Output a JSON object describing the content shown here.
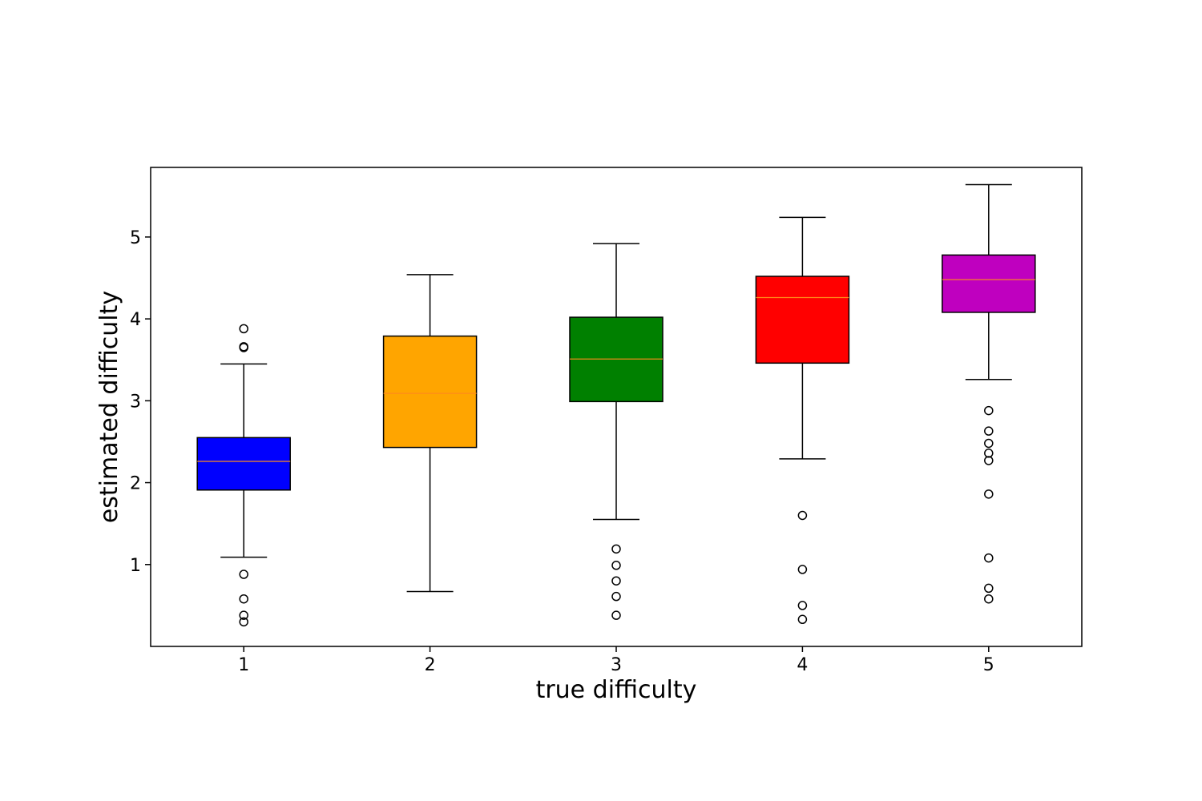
{
  "chart_data": {
    "type": "box",
    "xlabel": "true difficulty",
    "ylabel": "estimated difficulty",
    "ylim": [
      0.0,
      5.85
    ],
    "xlim": [
      0.5,
      5.5
    ],
    "yticks": [
      1,
      2,
      3,
      4,
      5
    ],
    "grid": false,
    "median_color": "#ff8c1a",
    "boxes": [
      {
        "category": "1",
        "color": "#0000ff",
        "whisker_low": 1.09,
        "q1": 1.91,
        "median": 2.26,
        "q3": 2.55,
        "whisker_high": 3.45,
        "outliers": [
          0.3,
          0.38,
          0.58,
          0.88,
          3.65,
          3.66,
          3.88
        ]
      },
      {
        "category": "2",
        "color": "#ffa500",
        "whisker_low": 0.67,
        "q1": 2.43,
        "median": 3.09,
        "q3": 3.79,
        "whisker_high": 4.54,
        "outliers": []
      },
      {
        "category": "3",
        "color": "#008000",
        "whisker_low": 1.55,
        "q1": 2.99,
        "median": 3.51,
        "q3": 4.02,
        "whisker_high": 4.92,
        "outliers": [
          0.38,
          0.61,
          0.8,
          0.99,
          1.19
        ]
      },
      {
        "category": "4",
        "color": "#ff0000",
        "whisker_low": 2.29,
        "q1": 3.46,
        "median": 4.26,
        "q3": 4.52,
        "whisker_high": 5.24,
        "outliers": [
          0.33,
          0.5,
          0.94,
          1.6
        ]
      },
      {
        "category": "5",
        "color": "#bf00bf",
        "whisker_low": 3.26,
        "q1": 4.08,
        "median": 4.48,
        "q3": 4.78,
        "whisker_high": 5.64,
        "outliers": [
          0.58,
          0.71,
          1.08,
          1.86,
          2.27,
          2.36,
          2.48,
          2.63,
          2.88
        ]
      }
    ]
  }
}
